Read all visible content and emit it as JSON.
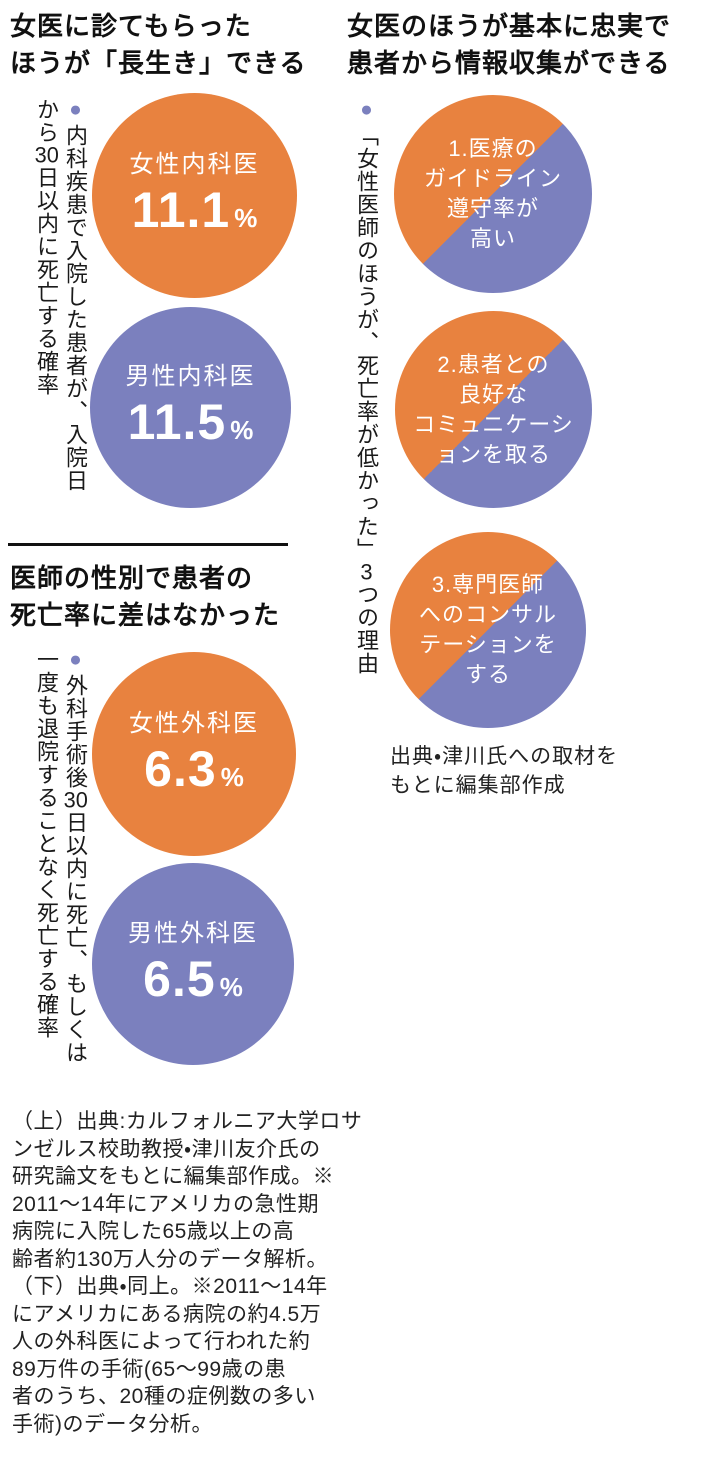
{
  "colors": {
    "orange": "#e8823f",
    "purple": "#7b80be",
    "ink": "#111111"
  },
  "left": {
    "section1": {
      "title": "女医に診てもらった\nほうが「長生き」できる",
      "bullet": "●",
      "note": "内科疾患で入院した患者が、入院日から30日以内に死亡する確率",
      "circles": [
        {
          "label": "女性内科医",
          "value": "11.1",
          "unit": "%",
          "color": "orange"
        },
        {
          "label": "男性内科医",
          "value": "11.5",
          "unit": "%",
          "color": "purple"
        }
      ]
    },
    "section2": {
      "title": "医師の性別で患者の\n死亡率に差はなかった",
      "bullet": "●",
      "note": "外科手術後30日以内に死亡、もしくは一度も退院することなく死亡する確率",
      "circles": [
        {
          "label": "女性外科医",
          "value": "6.3",
          "unit": "%",
          "color": "orange"
        },
        {
          "label": "男性外科医",
          "value": "6.5",
          "unit": "%",
          "color": "purple"
        }
      ]
    },
    "source": "（上）出典:カルフォルニア大学ロサ\nンゼルス校助教授・津川友介氏の\n研究論文をもとに編集部作成。※\n2011〜14年にアメリカの急性期\n病院に入院した65歳以上の高\n齢者約130万人分のデータ解析。\n（下）出典・同上。※2011〜14年\nにアメリカにある病院の約4.5万\n人の外科医によって行われた約\n89万件の手術(65〜99歳の患\n者のうち、20種の症例数の多い\n手術)のデータ分析。"
  },
  "right": {
    "title": "女医のほうが基本に忠実で\n患者から情報収集ができる",
    "bullet": "●",
    "note": "「女性医師のほうが、死亡率が低かった」3つの理由",
    "reasons": [
      {
        "text": "1.医療の\nガイドライン\n遵守率が\n高い"
      },
      {
        "text": "2.患者との\n良好な\nコミュニケーシ\nョンを取る"
      },
      {
        "text": "3.専門医師\nへのコンサル\nテーションを\nする"
      }
    ],
    "source": "出典・津川氏への取材を\nもとに編集部作成"
  },
  "chart_data": [
    {
      "type": "bar",
      "title": "女医に診てもらったほうが「長生き」できる",
      "note": "内科疾患で入院した患者が、入院日から30日以内に死亡する確率",
      "categories": [
        "女性内科医",
        "男性内科医"
      ],
      "values": [
        11.1,
        11.5
      ],
      "unit": "%",
      "series_colors": [
        "#e8823f",
        "#7b80be"
      ]
    },
    {
      "type": "bar",
      "title": "医師の性別で患者の死亡率に差はなかった",
      "note": "外科手術後30日以内に死亡、もしくは一度も退院することなく死亡する確率",
      "categories": [
        "女性外科医",
        "男性外科医"
      ],
      "values": [
        6.3,
        6.5
      ],
      "unit": "%",
      "series_colors": [
        "#e8823f",
        "#7b80be"
      ]
    },
    {
      "type": "table",
      "title": "女医のほうが基本に忠実で患者から情報収集ができる",
      "note": "「女性医師のほうが、死亡率が低かった」3つの理由",
      "rows": [
        "1.医療のガイドライン遵守率が高い",
        "2.患者との良好なコミュニケーションを取る",
        "3.専門医師へのコンサルテーションをする"
      ]
    }
  ]
}
